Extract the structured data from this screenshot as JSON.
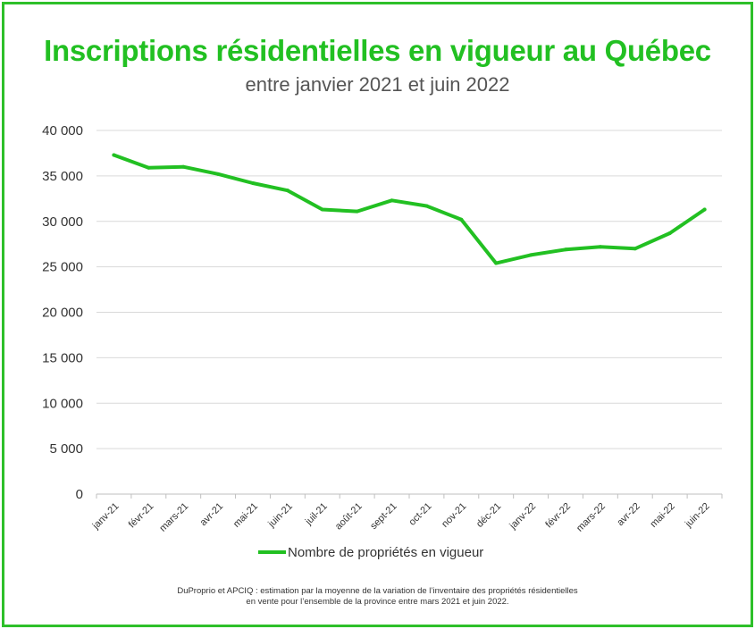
{
  "chart_data": {
    "type": "line",
    "title": "Inscriptions résidentielles en vigueur au Québec",
    "subtitle": "entre janvier 2021 et juin 2022",
    "categories": [
      "janv-21",
      "févr-21",
      "mars-21",
      "avr-21",
      "mai-21",
      "juin-21",
      "juil-21",
      "août-21",
      "sept-21",
      "oct-21",
      "nov-21",
      "déc-21",
      "janv-22",
      "févr-22",
      "mars-22",
      "avr-22",
      "mai-22",
      "juin-22"
    ],
    "series": [
      {
        "name": "Nombre de propriétés en vigueur",
        "values": [
          37300,
          35900,
          36000,
          35200,
          34200,
          33400,
          31300,
          31100,
          32300,
          31700,
          30200,
          25400,
          26300,
          26900,
          27200,
          27000,
          28700,
          31300
        ],
        "color": "#22c022"
      }
    ],
    "yticks": [
      "0",
      "5 000",
      "10 000",
      "15 000",
      "20 000",
      "25 000",
      "30 000",
      "35 000",
      "40 000"
    ],
    "ylim": [
      0,
      40000
    ],
    "grid": true,
    "legend_position": "bottom"
  },
  "footnote": {
    "line1": "DuProprio et APCIQ : estimation par la moyenne de la variation de l’inventaire des propriétés résidentielles",
    "line2": "en vente pour l’ensemble de la province entre mars 2021 et juin 2022."
  },
  "colors": {
    "accent": "#22c022",
    "border": "#2ec02a",
    "grid": "#d9d9d9"
  }
}
